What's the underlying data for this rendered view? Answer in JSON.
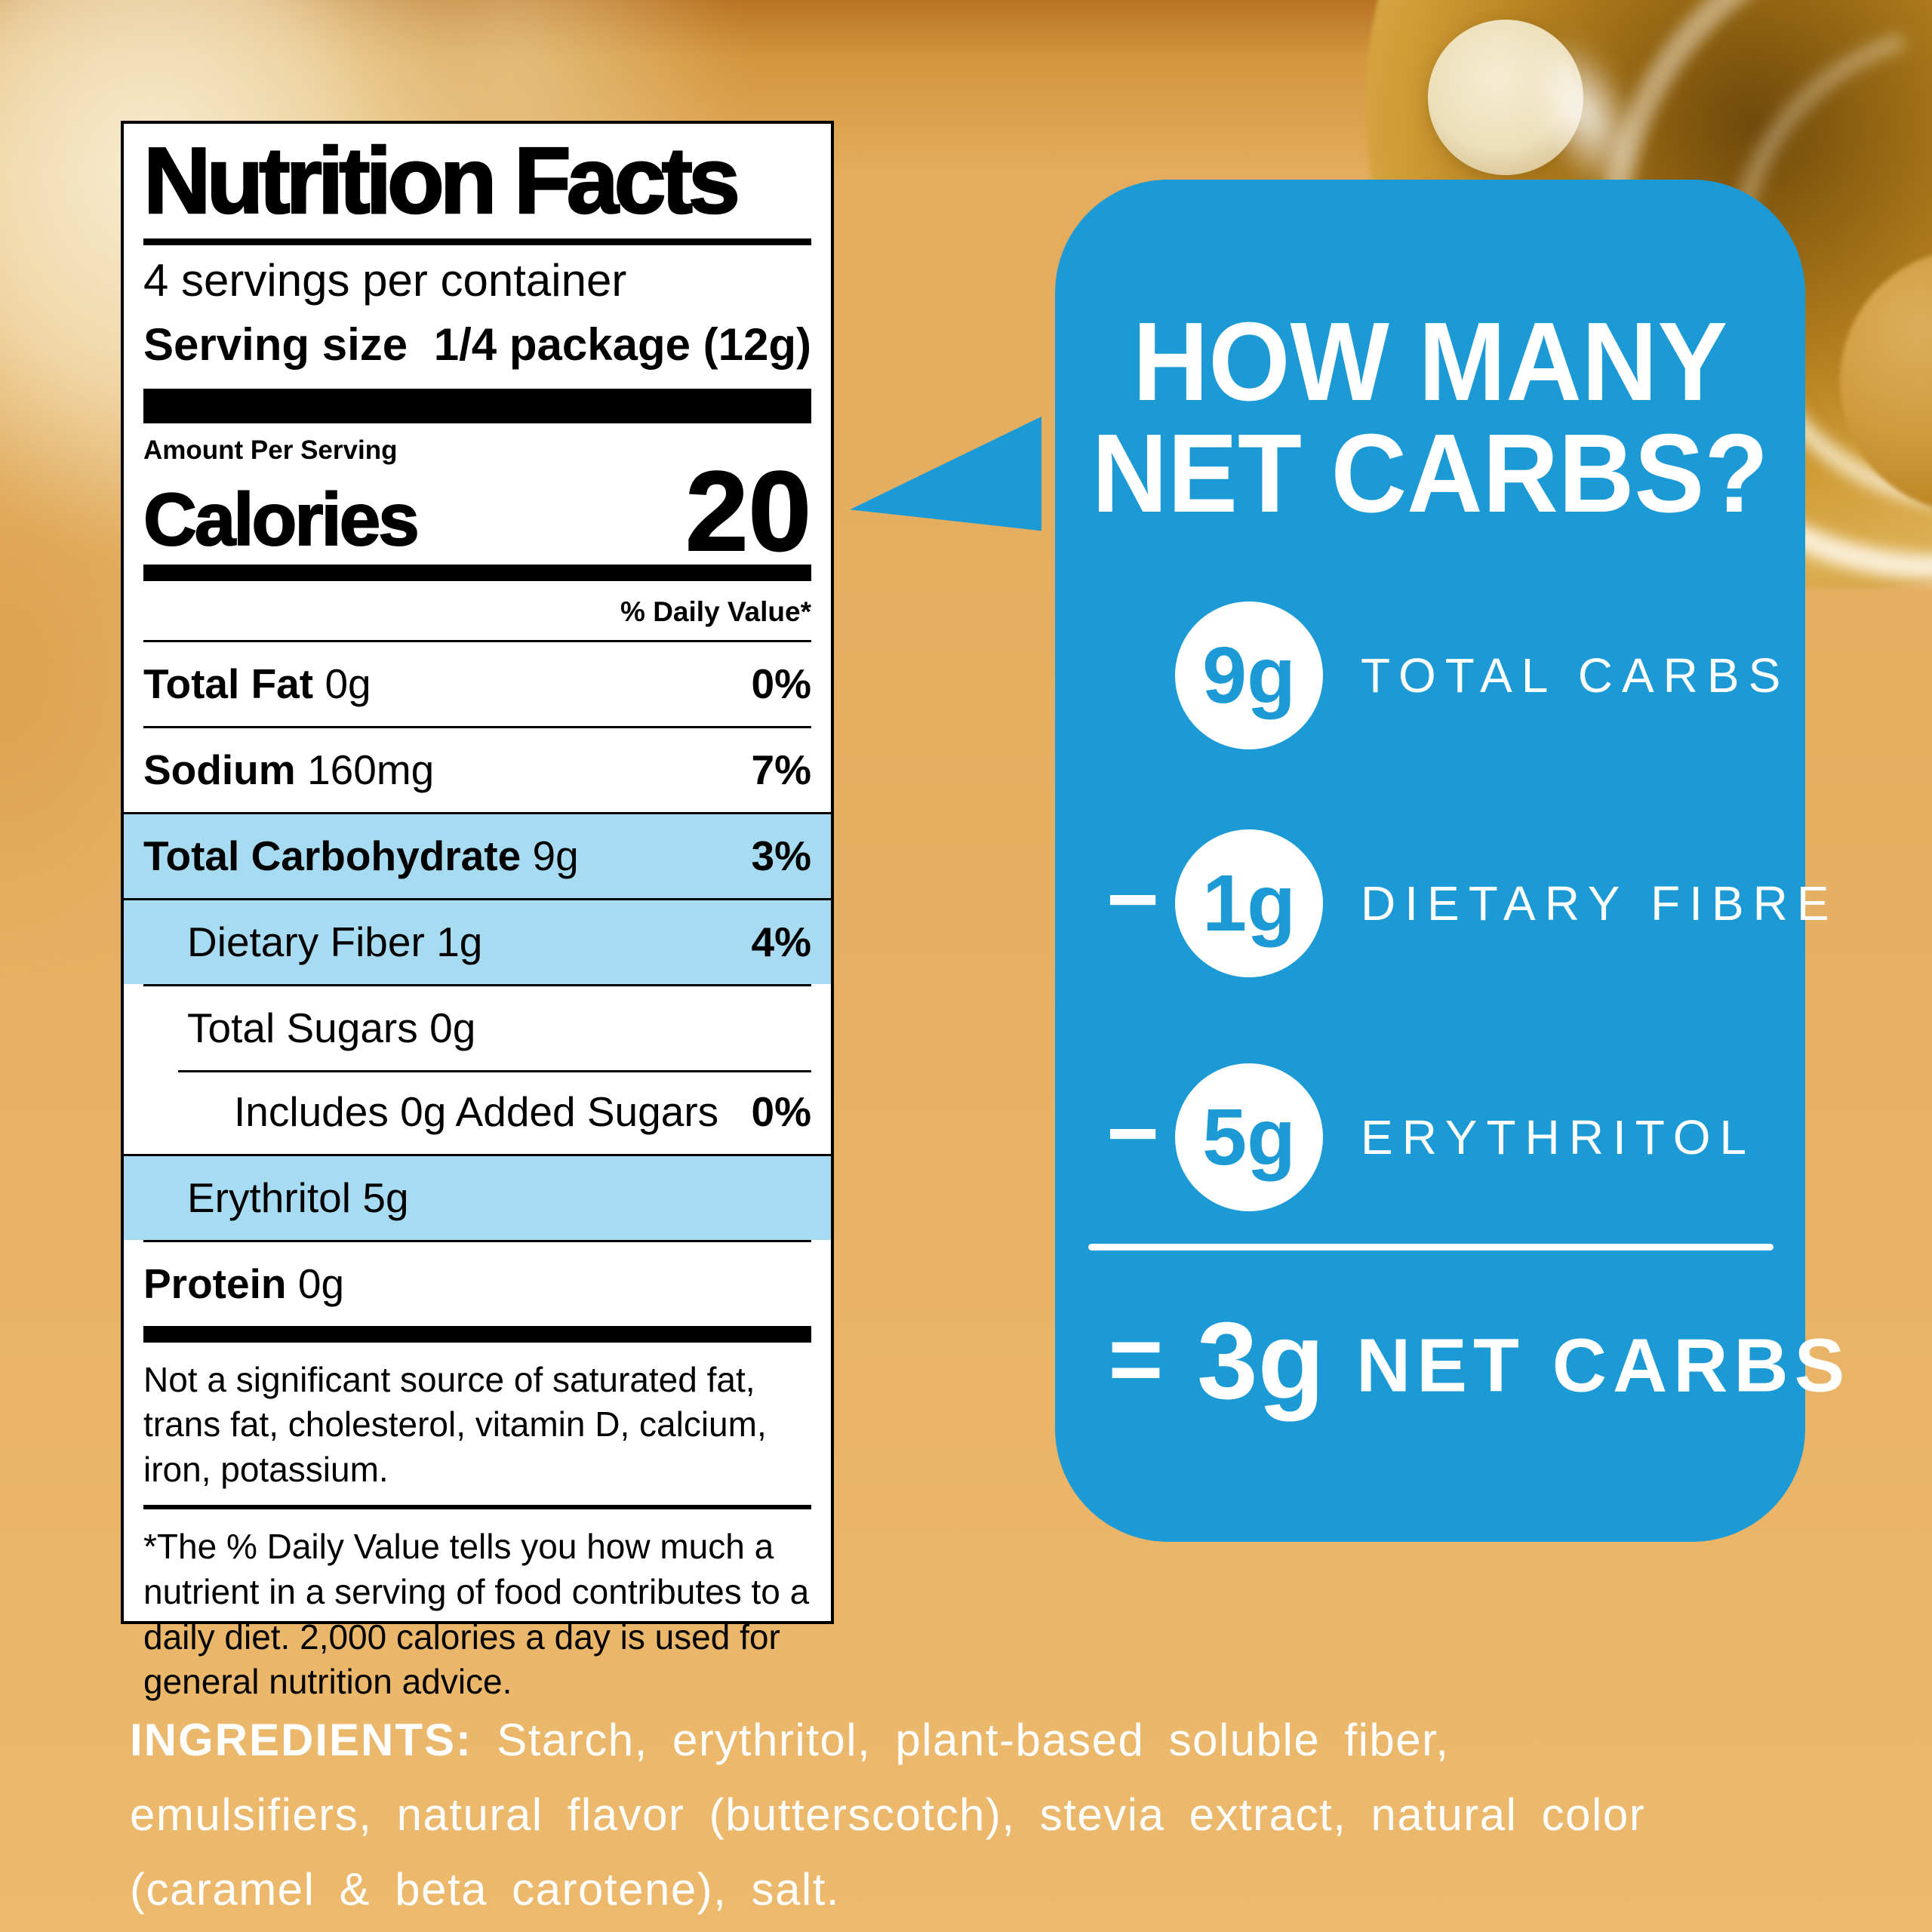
{
  "colors": {
    "background": "#e7b165",
    "bubble_blue": "#1b9ad6",
    "row_highlight": "#a6dbf2",
    "label_background": "#ffffff",
    "label_text": "#000000",
    "bubble_text": "#ffffff"
  },
  "nutrition_label": {
    "title": "Nutrition Facts",
    "servings_per_container": "4 servings per container",
    "serving_size_label": "Serving size",
    "serving_size_value": "1/4 package (12g)",
    "amount_per_serving": "Amount Per Serving",
    "calories_label": "Calories",
    "calories_value": "20",
    "daily_value_header": "% Daily Value*",
    "rows": [
      {
        "name": "Total Fat",
        "amount": "0g",
        "percent": "0%"
      },
      {
        "name": "Sodium",
        "amount": "160mg",
        "percent": "7%"
      },
      {
        "name": "Total Carbohydrate",
        "amount": "9g",
        "percent": "3%"
      },
      {
        "name": "Dietary Fiber",
        "amount": "1g",
        "percent": "4%"
      },
      {
        "name": "Total Sugars",
        "amount": "0g",
        "percent": ""
      },
      {
        "name": "Includes 0g Added Sugars",
        "amount": "",
        "percent": "0%"
      },
      {
        "name": "Erythritol",
        "amount": "5g",
        "percent": ""
      },
      {
        "name": "Protein",
        "amount": "0g",
        "percent": ""
      }
    ],
    "footnote_primary": "Not a significant source of saturated fat, trans fat, cholesterol, vitamin D, calcium, iron, potassium.",
    "footnote_daily_value": "*The % Daily Value tells you how much a nutrient in a serving of food contributes to a daily diet. 2,000 calories a day is used for general nutrition advice."
  },
  "net_carbs_bubble": {
    "heading": "HOW MANY\nNET CARBS?",
    "items": [
      {
        "operator": "",
        "value": "9g",
        "label": "TOTAL CARBS"
      },
      {
        "operator": "−",
        "value": "1g",
        "label": "DIETARY FIBRE"
      },
      {
        "operator": "−",
        "value": "5g",
        "label": "ERYTHRITOL"
      }
    ],
    "result": {
      "operator": "=",
      "value": "3g",
      "label": "NET CARBS"
    }
  },
  "ingredients": {
    "prefix": "INGREDIENTS:",
    "line1_rest": " Starch, erythritol, plant-based soluble fiber,",
    "line2": "emulsifiers, natural flavor (butterscotch), stevia extract, natural color",
    "line3": "(caramel & beta carotene), salt."
  }
}
